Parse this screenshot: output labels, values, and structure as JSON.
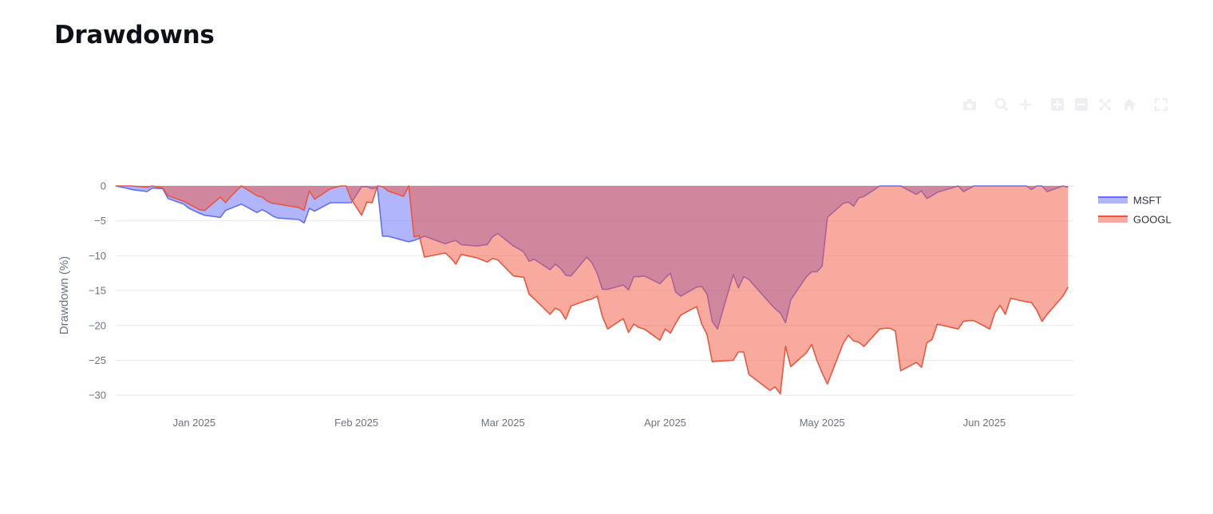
{
  "page": {
    "title": "Drawdowns"
  },
  "modebar": {
    "icons": [
      "camera-icon",
      "zoom-icon",
      "pan-icon",
      "zoom-in-icon",
      "zoom-out-icon",
      "autoscale-icon",
      "home-icon",
      "fullscreen-icon"
    ],
    "color": "#eeeff3"
  },
  "chart_data": {
    "type": "area",
    "title": "",
    "xlabel": "",
    "ylabel": "Drawdown (%)",
    "ylim": [
      -31,
      1
    ],
    "xlim": [
      "2024-12-17",
      "2025-06-18"
    ],
    "yticks": [
      0,
      -5,
      -10,
      -15,
      -20,
      -25,
      -30
    ],
    "ytick_labels": [
      "0",
      "−5",
      "−10",
      "−15",
      "−20",
      "−25",
      "−30"
    ],
    "xticks": [
      "2025-01-01",
      "2025-02-01",
      "2025-03-01",
      "2025-04-01",
      "2025-05-01",
      "2025-06-01"
    ],
    "xtick_labels": [
      "Jan 2025",
      "Feb 2025",
      "Mar 2025",
      "Apr 2025",
      "May 2025",
      "Jun 2025"
    ],
    "grid": true,
    "legend_position": "right",
    "series": [
      {
        "name": "MSFT",
        "line_color": "#636efa",
        "fill_color": "rgba(99,110,250,0.5)",
        "points": [
          [
            "2024-12-17",
            0
          ],
          [
            "2024-12-19",
            -0.3
          ],
          [
            "2024-12-20",
            -0.5
          ],
          [
            "2024-12-23",
            -0.8
          ],
          [
            "2024-12-24",
            -0.3
          ],
          [
            "2024-12-26",
            -0.4
          ],
          [
            "2024-12-27",
            -1.8
          ],
          [
            "2024-12-30",
            -2.6
          ],
          [
            "2024-12-31",
            -3.2
          ],
          [
            "2025-01-02",
            -3.9
          ],
          [
            "2025-01-03",
            -4.2
          ],
          [
            "2025-01-06",
            -4.5
          ],
          [
            "2025-01-07",
            -3.5
          ],
          [
            "2025-01-08",
            -3.2
          ],
          [
            "2025-01-10",
            -2.6
          ],
          [
            "2025-01-13",
            -3.8
          ],
          [
            "2025-01-14",
            -3.4
          ],
          [
            "2025-01-15",
            -3.8
          ],
          [
            "2025-01-16",
            -4.3
          ],
          [
            "2025-01-17",
            -4.6
          ],
          [
            "2025-01-21",
            -4.8
          ],
          [
            "2025-01-22",
            -5.3
          ],
          [
            "2025-01-23",
            -3.2
          ],
          [
            "2025-01-24",
            -3.6
          ],
          [
            "2025-01-27",
            -2.4
          ],
          [
            "2025-01-28",
            -2.4
          ],
          [
            "2025-01-29",
            -2.4
          ],
          [
            "2025-01-30",
            -2.4
          ],
          [
            "2025-01-31",
            -2.4
          ],
          [
            "2025-02-02",
            -0.1
          ],
          [
            "2025-02-03",
            -0.1
          ],
          [
            "2025-02-04",
            -0.4
          ],
          [
            "2025-02-05",
            -0.2
          ],
          [
            "2025-02-06",
            -7.2
          ],
          [
            "2025-02-07",
            -7.2
          ],
          [
            "2025-02-10",
            -7.8
          ],
          [
            "2025-02-11",
            -8.0
          ],
          [
            "2025-02-12",
            -7.8
          ],
          [
            "2025-02-13",
            -7.5
          ],
          [
            "2025-02-14",
            -7.2
          ],
          [
            "2025-02-18",
            -8.3
          ],
          [
            "2025-02-19",
            -8.0
          ],
          [
            "2025-02-20",
            -7.8
          ],
          [
            "2025-02-21",
            -8.4
          ],
          [
            "2025-02-24",
            -8.6
          ],
          [
            "2025-02-25",
            -8.5
          ],
          [
            "2025-02-26",
            -8.4
          ],
          [
            "2025-02-27",
            -7.3
          ],
          [
            "2025-02-28",
            -6.8
          ],
          [
            "2025-03-03",
            -8.6
          ],
          [
            "2025-03-04",
            -9.0
          ],
          [
            "2025-03-05",
            -9.5
          ],
          [
            "2025-03-06",
            -10.8
          ],
          [
            "2025-03-07",
            -10.5
          ],
          [
            "2025-03-10",
            -12.0
          ],
          [
            "2025-03-11",
            -11.2
          ],
          [
            "2025-03-12",
            -11.8
          ],
          [
            "2025-03-13",
            -12.8
          ],
          [
            "2025-03-14",
            -12.9
          ],
          [
            "2025-03-17",
            -10.2
          ],
          [
            "2025-03-18",
            -11.0
          ],
          [
            "2025-03-19",
            -12.5
          ],
          [
            "2025-03-20",
            -14.8
          ],
          [
            "2025-03-21",
            -14.8
          ],
          [
            "2025-03-24",
            -14.2
          ],
          [
            "2025-03-25",
            -14.9
          ],
          [
            "2025-03-26",
            -13.0
          ],
          [
            "2025-03-27",
            -13.0
          ],
          [
            "2025-03-28",
            -12.9
          ],
          [
            "2025-03-31",
            -14.0
          ],
          [
            "2025-04-01",
            -13.2
          ],
          [
            "2025-04-02",
            -12.5
          ],
          [
            "2025-04-03",
            -15.2
          ],
          [
            "2025-04-04",
            -15.8
          ],
          [
            "2025-04-07",
            -14.5
          ],
          [
            "2025-04-08",
            -14.4
          ],
          [
            "2025-04-09",
            -15.5
          ],
          [
            "2025-04-10",
            -19.4
          ],
          [
            "2025-04-11",
            -20.5
          ],
          [
            "2025-04-14",
            -12.7
          ],
          [
            "2025-04-15",
            -14.6
          ],
          [
            "2025-04-16",
            -13.0
          ],
          [
            "2025-04-17",
            -13.4
          ],
          [
            "2025-04-21",
            -16.8
          ],
          [
            "2025-04-22",
            -17.6
          ],
          [
            "2025-04-23",
            -18.2
          ],
          [
            "2025-04-24",
            -19.6
          ],
          [
            "2025-04-25",
            -16.3
          ],
          [
            "2025-04-28",
            -13.0
          ],
          [
            "2025-04-29",
            -12.3
          ],
          [
            "2025-04-30",
            -12.3
          ],
          [
            "2025-05-01",
            -11.5
          ],
          [
            "2025-05-02",
            -4.5
          ],
          [
            "2025-05-05",
            -2.5
          ],
          [
            "2025-05-06",
            -2.3
          ],
          [
            "2025-05-07",
            -2.9
          ],
          [
            "2025-05-08",
            -1.7
          ],
          [
            "2025-05-09",
            -1.5
          ],
          [
            "2025-05-12",
            0
          ],
          [
            "2025-05-13",
            0
          ],
          [
            "2025-05-14",
            0
          ],
          [
            "2025-05-15",
            0
          ],
          [
            "2025-05-16",
            0
          ],
          [
            "2025-05-19",
            -1.2
          ],
          [
            "2025-05-20",
            -0.7
          ],
          [
            "2025-05-21",
            -1.8
          ],
          [
            "2025-05-22",
            -1.4
          ],
          [
            "2025-05-23",
            -0.9
          ],
          [
            "2025-05-27",
            0
          ],
          [
            "2025-05-28",
            -0.8
          ],
          [
            "2025-05-29",
            -0.4
          ],
          [
            "2025-05-30",
            0
          ],
          [
            "2025-06-02",
            0
          ],
          [
            "2025-06-03",
            0
          ],
          [
            "2025-06-04",
            0
          ],
          [
            "2025-06-05",
            0
          ],
          [
            "2025-06-06",
            0
          ],
          [
            "2025-06-09",
            0
          ],
          [
            "2025-06-10",
            -0.5
          ],
          [
            "2025-06-11",
            0
          ],
          [
            "2025-06-12",
            0
          ],
          [
            "2025-06-13",
            -0.8
          ],
          [
            "2025-06-16",
            0
          ],
          [
            "2025-06-17",
            -0.2
          ]
        ]
      },
      {
        "name": "GOOGL",
        "line_color": "#ef553b",
        "fill_color": "rgba(239,85,59,0.5)",
        "points": [
          [
            "2024-12-17",
            0
          ],
          [
            "2024-12-19",
            0
          ],
          [
            "2024-12-20",
            0
          ],
          [
            "2024-12-23",
            -0.2
          ],
          [
            "2024-12-24",
            0
          ],
          [
            "2024-12-26",
            -0.3
          ],
          [
            "2024-12-27",
            -1.4
          ],
          [
            "2024-12-30",
            -2.2
          ],
          [
            "2024-12-31",
            -2.6
          ],
          [
            "2025-01-02",
            -3.4
          ],
          [
            "2025-01-03",
            -3.5
          ],
          [
            "2025-01-06",
            -1.6
          ],
          [
            "2025-01-07",
            -2.4
          ],
          [
            "2025-01-08",
            -1.5
          ],
          [
            "2025-01-10",
            0
          ],
          [
            "2025-01-13",
            -1.4
          ],
          [
            "2025-01-14",
            -1.6
          ],
          [
            "2025-01-15",
            -2.2
          ],
          [
            "2025-01-16",
            -2.5
          ],
          [
            "2025-01-17",
            -2.6
          ],
          [
            "2025-01-21",
            -3.1
          ],
          [
            "2025-01-22",
            -3.5
          ],
          [
            "2025-01-23",
            -0.7
          ],
          [
            "2025-01-24",
            -1.9
          ],
          [
            "2025-01-27",
            -0.4
          ],
          [
            "2025-01-28",
            -0.2
          ],
          [
            "2025-01-29",
            0
          ],
          [
            "2025-01-30",
            0
          ],
          [
            "2025-01-31",
            -1.9
          ],
          [
            "2025-02-02",
            -4.2
          ],
          [
            "2025-02-03",
            -2.3
          ],
          [
            "2025-02-04",
            -2.4
          ],
          [
            "2025-02-05",
            0
          ],
          [
            "2025-02-06",
            -0.1
          ],
          [
            "2025-02-07",
            -0.7
          ],
          [
            "2025-02-10",
            -1.5
          ],
          [
            "2025-02-11",
            0
          ],
          [
            "2025-02-12",
            -7.3
          ],
          [
            "2025-02-13",
            -7.1
          ],
          [
            "2025-02-14",
            -10.2
          ],
          [
            "2025-02-18",
            -9.6
          ],
          [
            "2025-02-19",
            -10.3
          ],
          [
            "2025-02-20",
            -11.2
          ],
          [
            "2025-02-21",
            -9.8
          ],
          [
            "2025-02-24",
            -10.3
          ],
          [
            "2025-02-25",
            -10.6
          ],
          [
            "2025-02-26",
            -10.9
          ],
          [
            "2025-02-27",
            -10.4
          ],
          [
            "2025-02-28",
            -10.6
          ],
          [
            "2025-03-03",
            -12.9
          ],
          [
            "2025-03-04",
            -13.0
          ],
          [
            "2025-03-05",
            -13.1
          ],
          [
            "2025-03-06",
            -15.5
          ],
          [
            "2025-03-07",
            -16.2
          ],
          [
            "2025-03-10",
            -18.4
          ],
          [
            "2025-03-11",
            -17.5
          ],
          [
            "2025-03-12",
            -17.9
          ],
          [
            "2025-03-13",
            -19.1
          ],
          [
            "2025-03-14",
            -17.2
          ],
          [
            "2025-03-17",
            -16.4
          ],
          [
            "2025-03-18",
            -16.2
          ],
          [
            "2025-03-19",
            -15.8
          ],
          [
            "2025-03-20",
            -18.7
          ],
          [
            "2025-03-21",
            -20.5
          ],
          [
            "2025-03-24",
            -19.0
          ],
          [
            "2025-03-25",
            -21.0
          ],
          [
            "2025-03-26",
            -19.8
          ],
          [
            "2025-03-27",
            -20.3
          ],
          [
            "2025-03-28",
            -20.5
          ],
          [
            "2025-03-31",
            -22.1
          ],
          [
            "2025-04-01",
            -20.5
          ],
          [
            "2025-04-02",
            -21.1
          ],
          [
            "2025-04-03",
            -19.7
          ],
          [
            "2025-04-04",
            -18.5
          ],
          [
            "2025-04-07",
            -17.3
          ],
          [
            "2025-04-08",
            -19.8
          ],
          [
            "2025-04-09",
            -21.3
          ],
          [
            "2025-04-10",
            -25.2
          ],
          [
            "2025-04-11",
            -25.1
          ],
          [
            "2025-04-14",
            -25.0
          ],
          [
            "2025-04-15",
            -23.8
          ],
          [
            "2025-04-16",
            -23.8
          ],
          [
            "2025-04-17",
            -27.0
          ],
          [
            "2025-04-21",
            -29.3
          ],
          [
            "2025-04-22",
            -28.8
          ],
          [
            "2025-04-23",
            -29.8
          ],
          [
            "2025-04-24",
            -23.0
          ],
          [
            "2025-04-25",
            -25.9
          ],
          [
            "2025-04-28",
            -23.9
          ],
          [
            "2025-04-29",
            -22.7
          ],
          [
            "2025-04-30",
            -25.0
          ],
          [
            "2025-05-01",
            -26.8
          ],
          [
            "2025-05-02",
            -28.4
          ],
          [
            "2025-05-05",
            -22.6
          ],
          [
            "2025-05-06",
            -21.4
          ],
          [
            "2025-05-07",
            -22.2
          ],
          [
            "2025-05-08",
            -22.4
          ],
          [
            "2025-05-09",
            -23.0
          ],
          [
            "2025-05-12",
            -20.5
          ],
          [
            "2025-05-13",
            -20.4
          ],
          [
            "2025-05-14",
            -20.4
          ],
          [
            "2025-05-15",
            -20.8
          ],
          [
            "2025-05-16",
            -26.5
          ],
          [
            "2025-05-19",
            -25.3
          ],
          [
            "2025-05-20",
            -26.0
          ],
          [
            "2025-05-21",
            -22.5
          ],
          [
            "2025-05-22",
            -22.0
          ],
          [
            "2025-05-23",
            -19.8
          ],
          [
            "2025-05-27",
            -20.5
          ],
          [
            "2025-05-28",
            -19.4
          ],
          [
            "2025-05-29",
            -19.3
          ],
          [
            "2025-05-30",
            -19.3
          ],
          [
            "2025-06-02",
            -20.5
          ],
          [
            "2025-06-03",
            -18.2
          ],
          [
            "2025-06-04",
            -17.1
          ],
          [
            "2025-06-05",
            -18.4
          ],
          [
            "2025-06-06",
            -16.1
          ],
          [
            "2025-06-09",
            -16.6
          ],
          [
            "2025-06-10",
            -16.7
          ],
          [
            "2025-06-11",
            -17.8
          ],
          [
            "2025-06-12",
            -19.4
          ],
          [
            "2025-06-13",
            -18.4
          ],
          [
            "2025-06-16",
            -15.8
          ],
          [
            "2025-06-17",
            -14.5
          ]
        ]
      }
    ]
  }
}
